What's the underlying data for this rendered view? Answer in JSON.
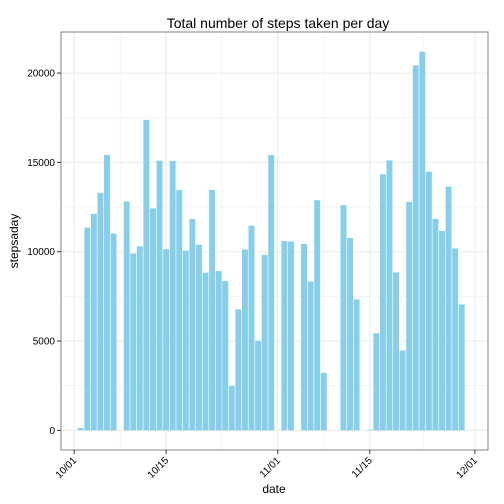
{
  "chart_data": {
    "type": "bar",
    "title": "Total number of steps taken per day",
    "xlabel": "date",
    "ylabel": "stepsaday",
    "xlim": [
      "2012-09-29",
      "2012-12-03"
    ],
    "ylim": [
      -1100,
      22300
    ],
    "y_ticks": [
      0,
      5000,
      10000,
      15000,
      20000
    ],
    "x_ticks": [
      {
        "date": "2012-10-01",
        "label": "10/01"
      },
      {
        "date": "2012-10-15",
        "label": "10/15"
      },
      {
        "date": "2012-11-01",
        "label": "11/01"
      },
      {
        "date": "2012-11-15",
        "label": "11/15"
      },
      {
        "date": "2012-12-01",
        "label": "12/01"
      }
    ],
    "grid": true,
    "colors": {
      "bar": "#87ceeb",
      "panel_border": "#808080",
      "grid": "#ebebeb",
      "tick": "#333333"
    },
    "x": [
      "2012-10-02",
      "2012-10-03",
      "2012-10-04",
      "2012-10-05",
      "2012-10-06",
      "2012-10-07",
      "2012-10-09",
      "2012-10-10",
      "2012-10-11",
      "2012-10-12",
      "2012-10-13",
      "2012-10-14",
      "2012-10-15",
      "2012-10-16",
      "2012-10-17",
      "2012-10-18",
      "2012-10-19",
      "2012-10-20",
      "2012-10-21",
      "2012-10-22",
      "2012-10-23",
      "2012-10-24",
      "2012-10-25",
      "2012-10-26",
      "2012-10-27",
      "2012-10-28",
      "2012-10-29",
      "2012-10-30",
      "2012-10-31",
      "2012-11-02",
      "2012-11-03",
      "2012-11-05",
      "2012-11-06",
      "2012-11-07",
      "2012-11-08",
      "2012-11-11",
      "2012-11-12",
      "2012-11-13",
      "2012-11-15",
      "2012-11-16",
      "2012-11-17",
      "2012-11-18",
      "2012-11-19",
      "2012-11-20",
      "2012-11-21",
      "2012-11-22",
      "2012-11-23",
      "2012-11-24",
      "2012-11-25",
      "2012-11-26",
      "2012-11-27",
      "2012-11-28",
      "2012-11-29"
    ],
    "values": [
      126,
      11352,
      12116,
      13294,
      15420,
      11015,
      12811,
      9900,
      10304,
      17382,
      12426,
      15098,
      10139,
      15084,
      13452,
      10056,
      11829,
      10395,
      8821,
      13460,
      8918,
      8355,
      2492,
      6778,
      10119,
      11458,
      5018,
      9819,
      15414,
      10600,
      10571,
      10439,
      8334,
      12883,
      3219,
      12608,
      10765,
      7336,
      41,
      5441,
      14339,
      15110,
      8841,
      4472,
      12787,
      20427,
      21194,
      14478,
      11834,
      11162,
      13646,
      10183,
      7047
    ]
  }
}
